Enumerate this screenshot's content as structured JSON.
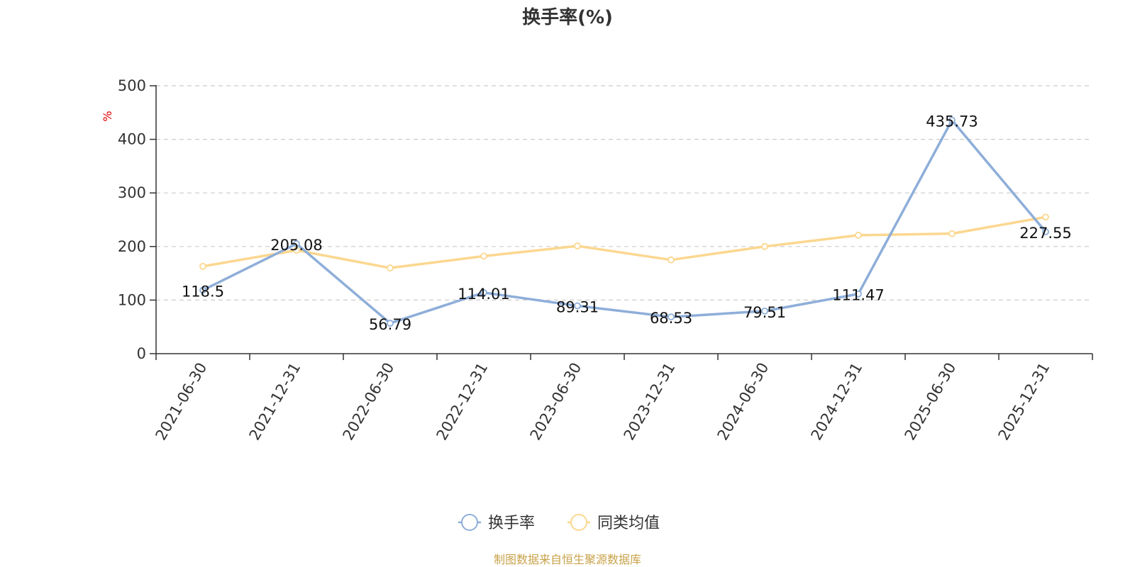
{
  "chart_data": {
    "type": "line",
    "title": "换手率(%)",
    "ylabel": "%",
    "xlabel": "",
    "ylim": [
      0,
      500
    ],
    "yticks": [
      0,
      100,
      200,
      300,
      400,
      500
    ],
    "grid": true,
    "legend_position": "bottom-center",
    "categories": [
      "2021-06-30",
      "2021-12-31",
      "2022-06-30",
      "2022-12-31",
      "2023-06-30",
      "2023-12-31",
      "2024-06-30",
      "2024-12-31",
      "2025-06-30",
      "2025-12-31"
    ],
    "series": [
      {
        "name": "换手率",
        "color": "#8eaed9",
        "values": [
          118.5,
          205.08,
          56.79,
          114.01,
          89.31,
          68.53,
          79.51,
          111.47,
          435.73,
          227.55
        ],
        "labels": [
          "118.5",
          "205.08",
          "56.79",
          "114.01",
          "89.31",
          "68.53",
          "79.51",
          "111.47",
          "435.73",
          "227.55"
        ]
      },
      {
        "name": "同类均值",
        "color": "#fbd78f",
        "values": [
          163,
          193,
          160,
          182,
          201,
          175,
          200,
          221,
          224,
          255
        ]
      }
    ]
  },
  "source": "制图数据来自恒生聚源数据库"
}
